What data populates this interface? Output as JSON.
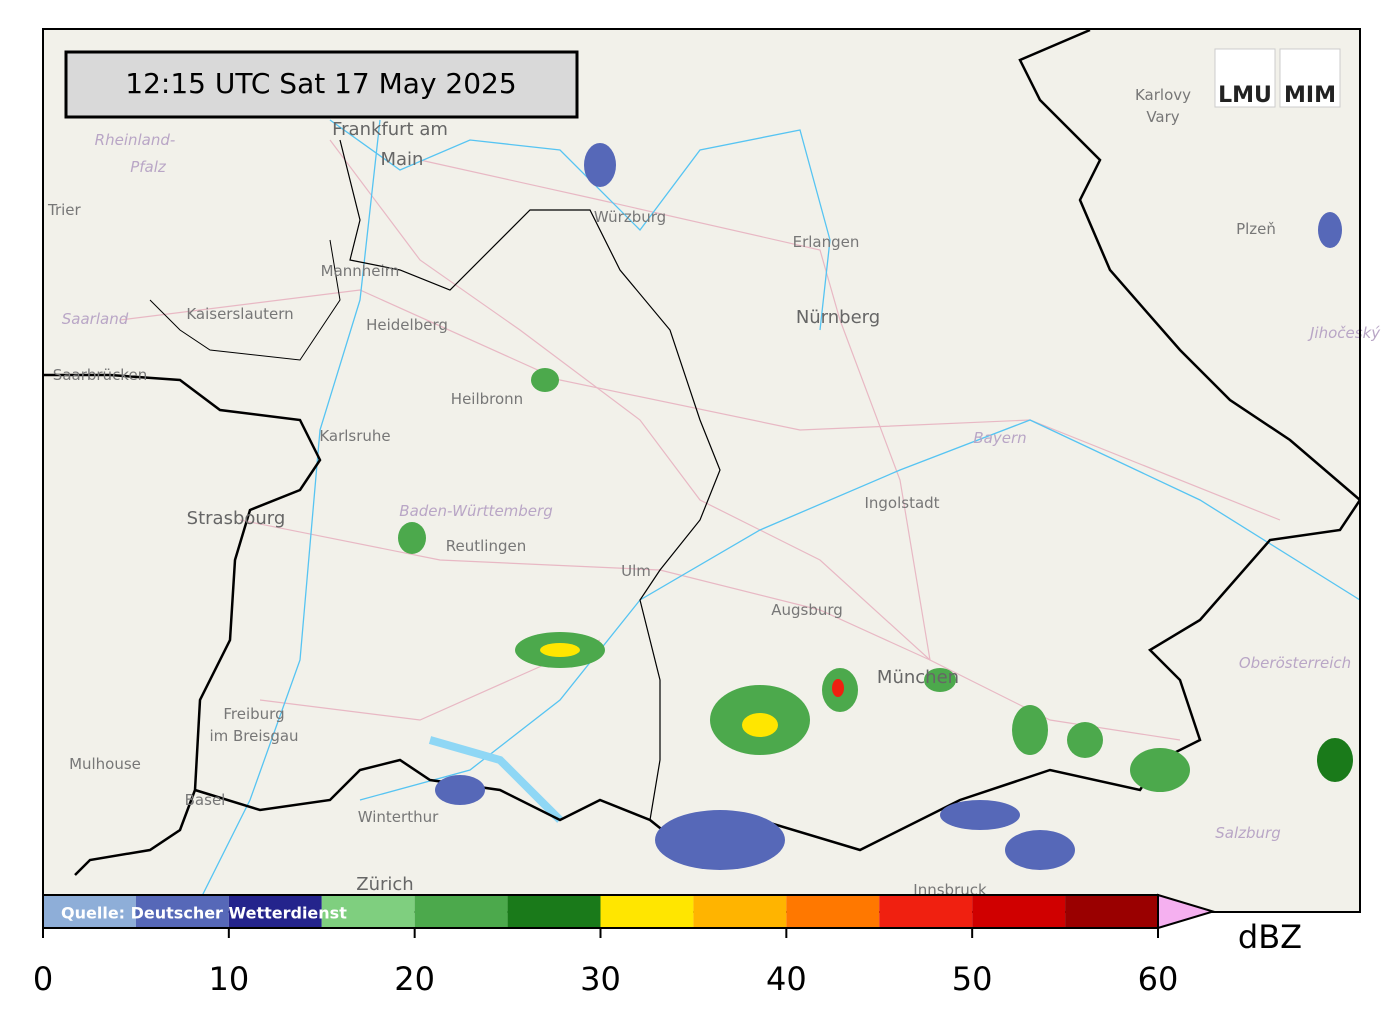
{
  "header": {
    "timestamp": "12:15 UTC  Sat 17 May 2025"
  },
  "logos": [
    "LMU",
    "MIM"
  ],
  "map": {
    "labels": [
      "Frankfurt am",
      "Main",
      "Rheinland-",
      "Pfalz",
      "Trier",
      "Würzburg",
      "Erlangen",
      "Nürnberg",
      "Mannheim",
      "Kaiserslautern",
      "Heidelberg",
      "Saarland",
      "Saarbrücken",
      "Heilbronn",
      "Karlsruhe",
      "Bayern",
      "Ingolstadt",
      "Strasbourg",
      "Baden-Württemberg",
      "Reutlingen",
      "Ulm",
      "Augsburg",
      "München",
      "Oberösterreich",
      "Freiburg",
      "im Breisgau",
      "Mulhouse",
      "Basel",
      "Winterthur",
      "Zürich",
      "Innsbruck",
      "Salzburg",
      "Karlovy",
      "Vary",
      "Plzeň",
      "Jihočeský"
    ]
  },
  "colorbar": {
    "unit": "dBZ",
    "source": "Quelle: Deutscher Wetterdienst",
    "xlim": [
      0,
      60
    ],
    "ticks": [
      0,
      10,
      20,
      30,
      40,
      50,
      60
    ],
    "bounds": [
      0,
      5,
      10,
      15,
      20,
      25,
      30,
      35,
      40,
      45,
      50,
      55,
      60
    ],
    "colors": [
      "#8eaed8",
      "#5668b8",
      "#24248c",
      "#7fcf7f",
      "#4ca94c",
      "#1a7a1a",
      "#ffe600",
      "#ffb400",
      "#ff7800",
      "#f02010",
      "#d00000",
      "#9a0000"
    ],
    "extend_color": "#f5b0f0"
  }
}
